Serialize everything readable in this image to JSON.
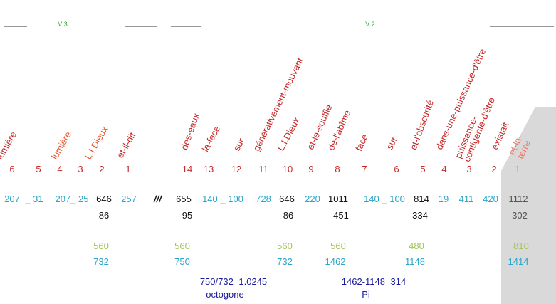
{
  "colors": {
    "red": "#c62828",
    "orange": "#e8542a",
    "cyan": "#29a6c9",
    "black": "#111111",
    "green": "#a3c45a",
    "gray": "#555555",
    "blue": "#1a1a9c",
    "vlabel": "#2aa52a",
    "shade": "#d9d9d9",
    "shade_text": "#e8746a"
  },
  "verse_labels": {
    "v3": "V 3",
    "v2": "V 2"
  },
  "separator": "///",
  "v3": {
    "words": [
      "lumière",
      "lumière",
      "L.I.Dieux",
      "et-il-dit"
    ],
    "word_colors": [
      "red",
      "orange",
      "orange",
      "red"
    ],
    "indices": [
      "6",
      "5",
      "4",
      "3",
      "2",
      "1"
    ],
    "row1": [
      {
        "text": "207",
        "color": "cyan"
      },
      {
        "text": "_ 31",
        "color": "cyan"
      },
      {
        "text": "207_ 25",
        "color": "cyan"
      },
      {
        "text": "646",
        "color": "black"
      },
      {
        "text": "257",
        "color": "cyan"
      }
    ],
    "row2": [
      {
        "text": "86",
        "color": "black"
      }
    ],
    "row3": [
      {
        "text": "560",
        "color": "green"
      }
    ],
    "row4": [
      {
        "text": "732",
        "color": "cyan"
      }
    ]
  },
  "v2": {
    "words": [
      "des-eaux",
      "la-face",
      "sur",
      "générativement-mouvant",
      "L.I.Dieux",
      "et-le-souffle",
      "de-l'abîme",
      "face",
      "sur",
      "et-l'obscurité",
      "dans-une-puissance-d'être",
      "puissance-contigente-d'être",
      "existait",
      "et-la-terre"
    ],
    "word_colors": [
      "red",
      "red",
      "red",
      "red",
      "red",
      "red",
      "red",
      "red",
      "red",
      "red",
      "red",
      "red",
      "red",
      "shade_text"
    ],
    "indices": [
      "14",
      "13",
      "12",
      "11",
      "10",
      "9",
      "8",
      "7",
      "6",
      "5",
      "4",
      "3",
      "2",
      "1"
    ],
    "row1": [
      {
        "text": "655",
        "color": "black"
      },
      {
        "text": "140 _ 100",
        "color": "cyan"
      },
      {
        "text": "728",
        "color": "cyan"
      },
      {
        "text": "646",
        "color": "black"
      },
      {
        "text": "220",
        "color": "cyan"
      },
      {
        "text": "1011",
        "color": "black"
      },
      {
        "text": "140 _ 100",
        "color": "cyan"
      },
      {
        "text": "814",
        "color": "black"
      },
      {
        "text": "19",
        "color": "cyan"
      },
      {
        "text": "411",
        "color": "cyan"
      },
      {
        "text": "420",
        "color": "cyan"
      },
      {
        "text": "1112",
        "color": "gray"
      }
    ],
    "row2": [
      {
        "text": "95",
        "color": "black"
      },
      {
        "text": "86",
        "color": "black"
      },
      {
        "text": "451",
        "color": "black"
      },
      {
        "text": "334",
        "color": "black"
      },
      {
        "text": "302",
        "color": "gray"
      }
    ],
    "row3": [
      {
        "text": "560",
        "color": "green"
      },
      {
        "text": "560",
        "color": "green"
      },
      {
        "text": "560",
        "color": "green"
      },
      {
        "text": "480",
        "color": "green"
      },
      {
        "text": "810",
        "color": "green"
      }
    ],
    "row4": [
      {
        "text": "750",
        "color": "cyan"
      },
      {
        "text": "732",
        "color": "cyan"
      },
      {
        "text": "1462",
        "color": "cyan"
      },
      {
        "text": "1148",
        "color": "cyan"
      },
      {
        "text": "1414",
        "color": "cyan"
      }
    ]
  },
  "results": [
    {
      "formula": "750/732=1.0245",
      "caption": "octogone"
    },
    {
      "formula": "1462-1148=314",
      "caption": "Pi"
    }
  ]
}
